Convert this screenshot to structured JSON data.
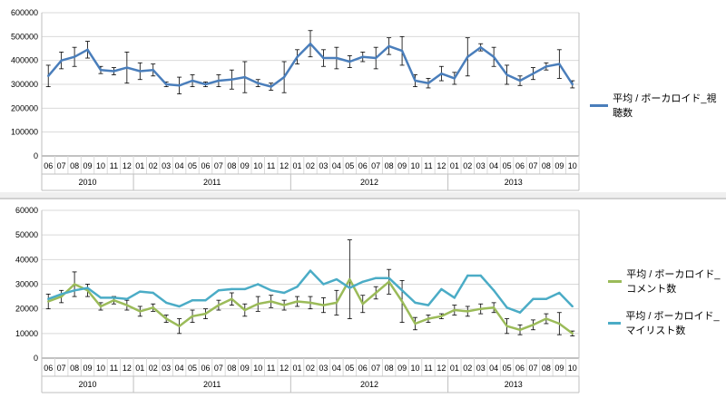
{
  "chart_data": [
    {
      "type": "line",
      "ylim": [
        0,
        600000
      ],
      "yticks": [
        "0",
        "100000",
        "200000",
        "300000",
        "400000",
        "500000",
        "600000"
      ],
      "months": [
        "06",
        "07",
        "08",
        "09",
        "10",
        "11",
        "12",
        "01",
        "02",
        "03",
        "04",
        "05",
        "06",
        "07",
        "08",
        "09",
        "10",
        "11",
        "12",
        "01",
        "02",
        "03",
        "04",
        "05",
        "06",
        "07",
        "08",
        "09",
        "10",
        "11",
        "12",
        "01",
        "02",
        "03",
        "04",
        "05",
        "06",
        "07",
        "08",
        "09",
        "10"
      ],
      "years": [
        "2010",
        "2011",
        "2012",
        "2013"
      ],
      "grid": true,
      "error_bars": true,
      "legend_position": "right",
      "series": [
        {
          "name": "平均 / ボーカロイド_視聴数",
          "color": "#4a7ebb",
          "values": [
            335000,
            400000,
            415000,
            445000,
            360000,
            355000,
            370000,
            355000,
            360000,
            300000,
            295000,
            315000,
            300000,
            315000,
            320000,
            330000,
            305000,
            290000,
            330000,
            415000,
            470000,
            410000,
            410000,
            395000,
            415000,
            410000,
            460000,
            440000,
            315000,
            305000,
            345000,
            325000,
            415000,
            455000,
            415000,
            340000,
            315000,
            345000,
            375000,
            385000,
            300000
          ],
          "errors": [
            45000,
            35000,
            40000,
            35000,
            15000,
            15000,
            65000,
            35000,
            25000,
            10000,
            35000,
            25000,
            10000,
            25000,
            40000,
            65000,
            15000,
            15000,
            65000,
            30000,
            55000,
            35000,
            45000,
            25000,
            20000,
            45000,
            35000,
            60000,
            25000,
            20000,
            30000,
            25000,
            80000,
            15000,
            40000,
            40000,
            20000,
            25000,
            15000,
            60000,
            15000
          ]
        }
      ]
    },
    {
      "type": "line",
      "ylim": [
        0,
        60000
      ],
      "yticks": [
        "0",
        "10000",
        "20000",
        "30000",
        "40000",
        "50000",
        "60000"
      ],
      "months": [
        "06",
        "07",
        "08",
        "09",
        "10",
        "11",
        "12",
        "01",
        "02",
        "03",
        "04",
        "05",
        "06",
        "07",
        "08",
        "09",
        "10",
        "11",
        "12",
        "01",
        "02",
        "03",
        "04",
        "05",
        "06",
        "07",
        "08",
        "09",
        "10",
        "11",
        "12",
        "01",
        "02",
        "03",
        "04",
        "05",
        "06",
        "07",
        "08",
        "09",
        "10"
      ],
      "years": [
        "2010",
        "2011",
        "2012",
        "2013"
      ],
      "grid": true,
      "error_bars": true,
      "legend_position": "right",
      "series": [
        {
          "name": "平均 / ボーカロイド_コメント数",
          "color": "#9bbb59",
          "values": [
            23000,
            25000,
            30000,
            27500,
            21000,
            23500,
            21500,
            19000,
            20500,
            16000,
            13000,
            17000,
            18000,
            21500,
            24000,
            19500,
            22000,
            23000,
            21500,
            23000,
            22500,
            21500,
            22500,
            32000,
            22000,
            26500,
            31000,
            23000,
            14000,
            16000,
            17000,
            19500,
            19000,
            20000,
            20500,
            13000,
            11500,
            13500,
            16000,
            14000,
            10000
          ],
          "errors": [
            3000,
            2500,
            5000,
            2500,
            1500,
            1500,
            2000,
            2000,
            1500,
            1500,
            3000,
            2500,
            2000,
            2000,
            2500,
            2500,
            3000,
            2500,
            2000,
            2000,
            2500,
            3000,
            5000,
            16000,
            3500,
            2500,
            5000,
            8500,
            2500,
            1500,
            1000,
            2000,
            2000,
            2000,
            2000,
            3000,
            2000,
            2000,
            2000,
            4500,
            1000
          ]
        },
        {
          "name": "平均 / ボーカロイド_マイリスト数",
          "color": "#4bacc6",
          "values": [
            24000,
            26000,
            27500,
            28500,
            24500,
            24500,
            24000,
            27000,
            26500,
            22500,
            21000,
            23500,
            23500,
            27500,
            28000,
            28000,
            30000,
            27500,
            26500,
            29000,
            35500,
            30000,
            32000,
            28500,
            31000,
            32500,
            32500,
            27500,
            22500,
            21500,
            28000,
            24500,
            33500,
            33500,
            27500,
            20500,
            18500,
            24000,
            24000,
            26500,
            21000
          ]
        }
      ]
    }
  ]
}
